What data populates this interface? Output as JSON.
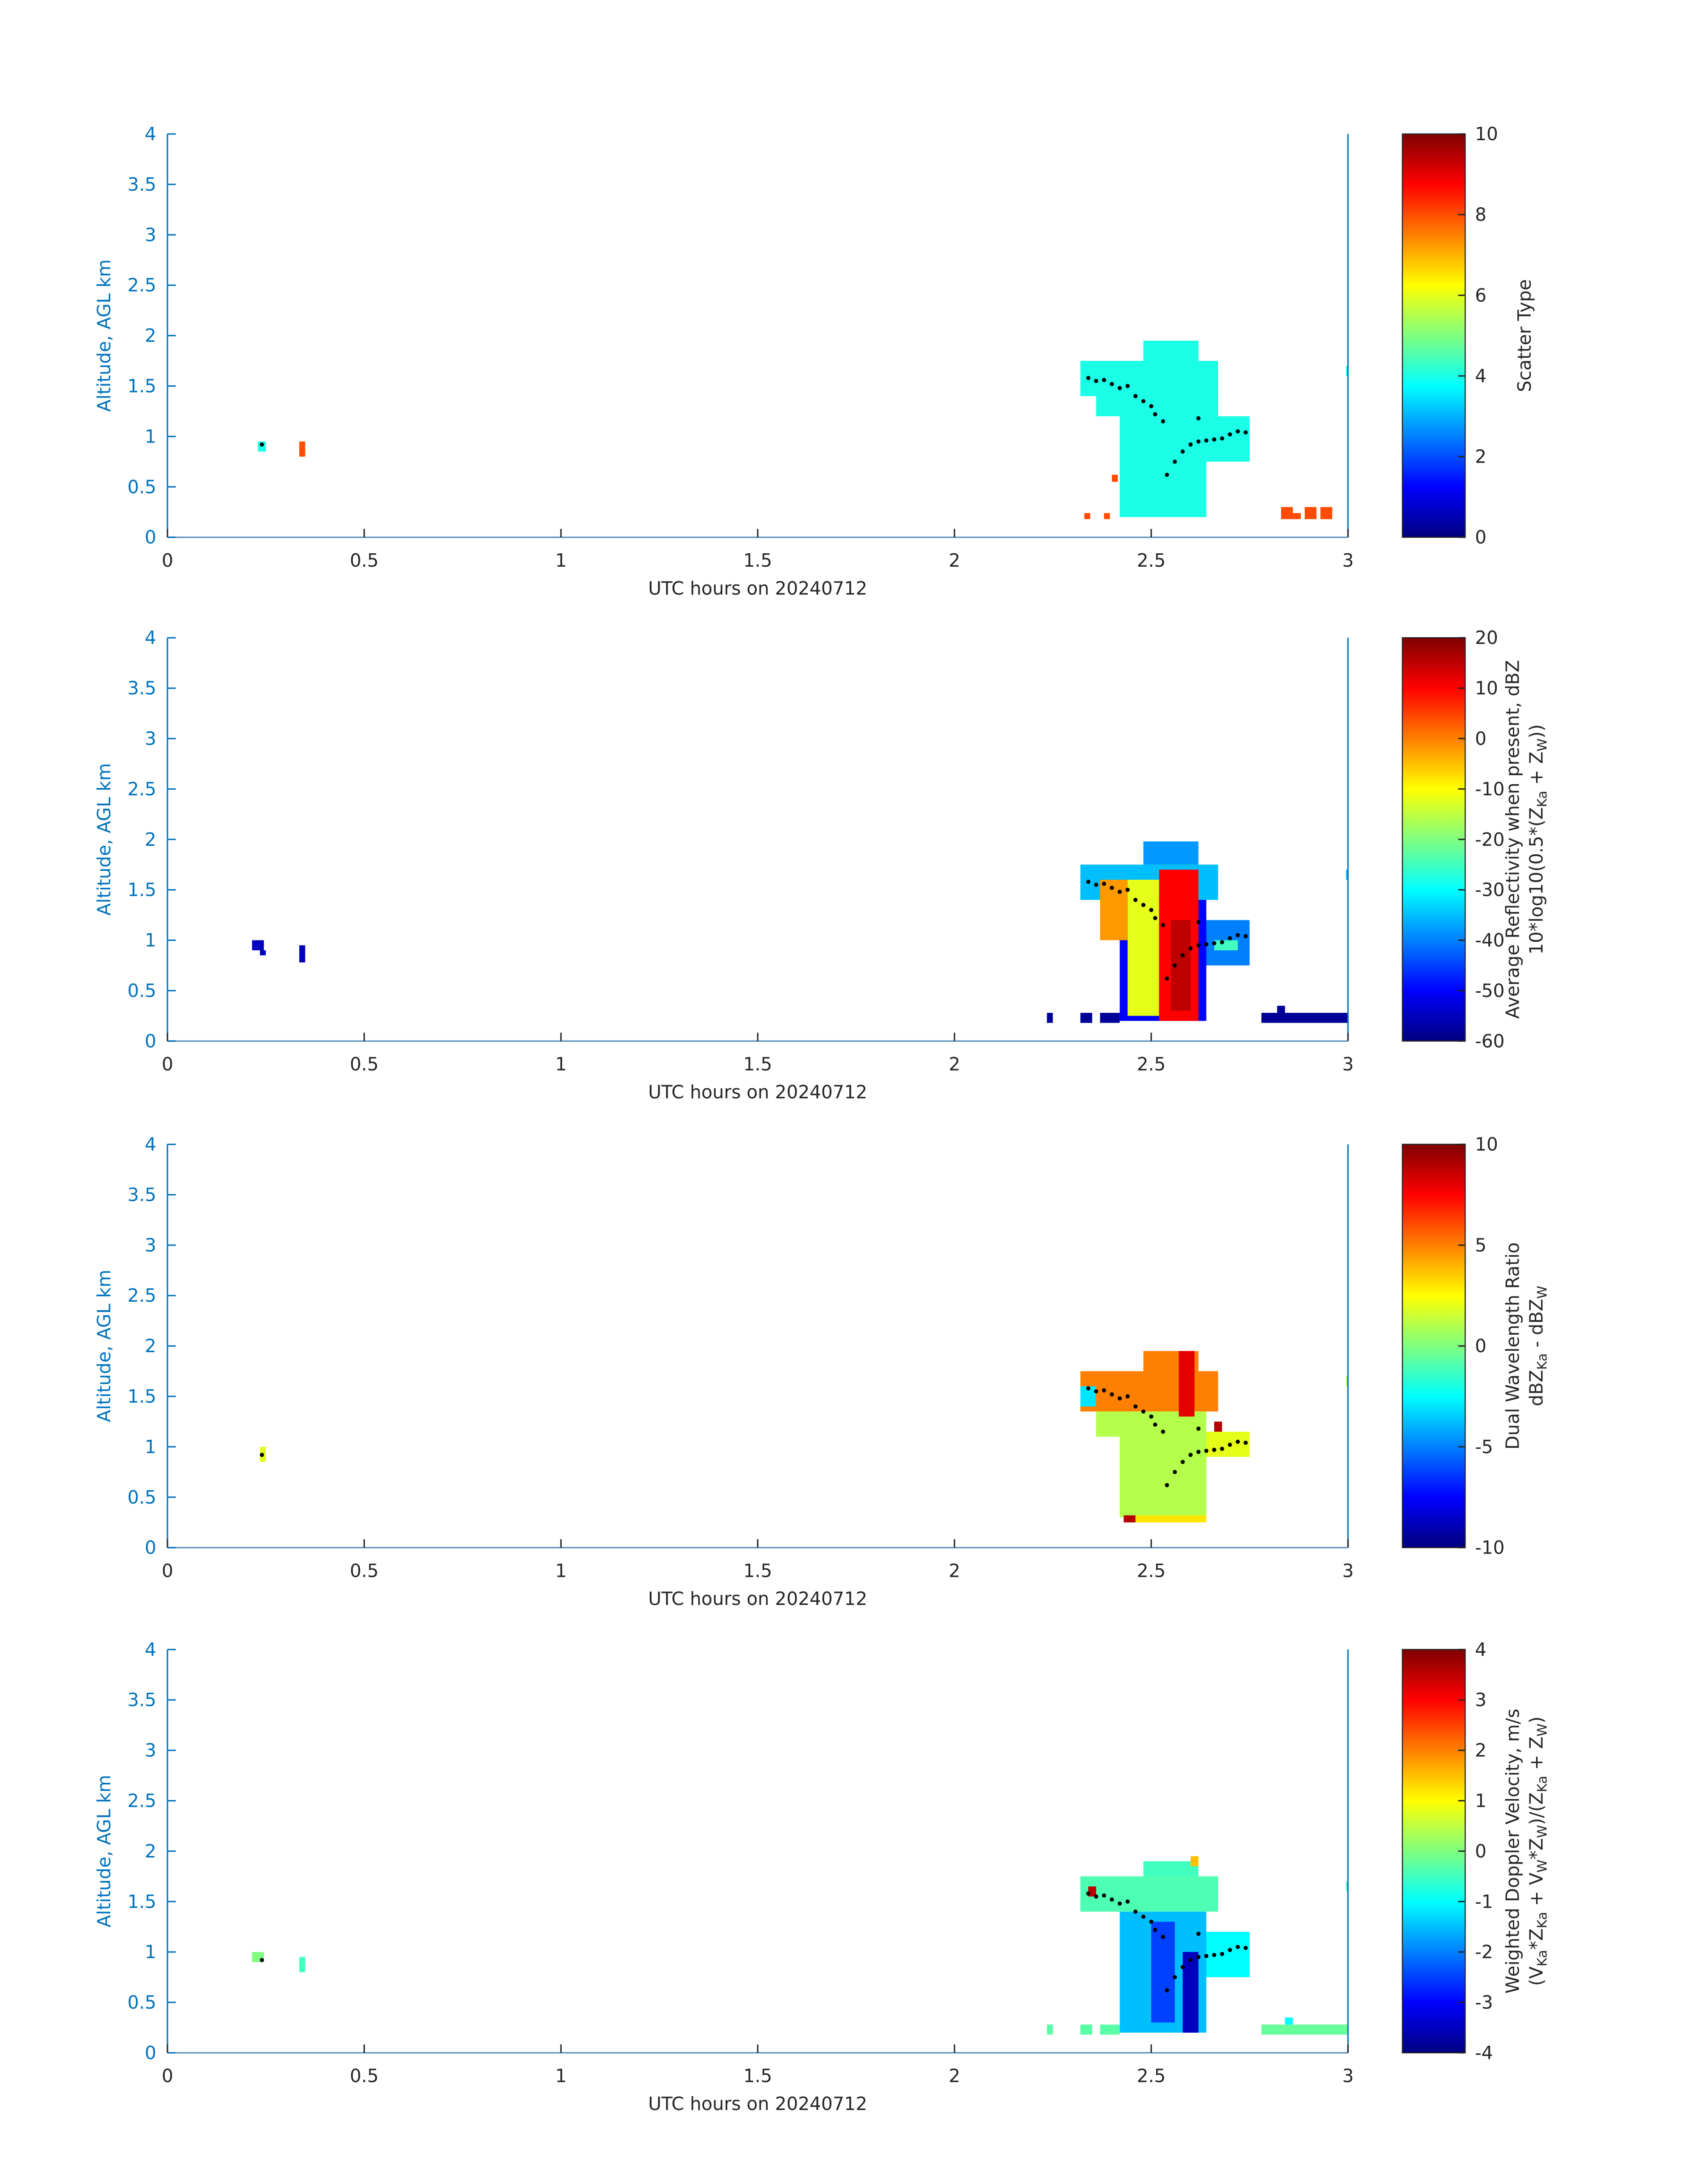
{
  "chart_data": [
    {
      "type": "heatmap",
      "xlabel": "UTC hours on 20240712",
      "ylabel": "Altitude, AGL km",
      "xlim": [
        0,
        3
      ],
      "ylim": [
        0,
        4
      ],
      "xticks": [
        0,
        0.5,
        1,
        1.5,
        2,
        2.5,
        3
      ],
      "yticks": [
        0,
        0.5,
        1,
        1.5,
        2,
        2.5,
        3,
        3.5,
        4
      ],
      "colormap": "jet",
      "clim": [
        0,
        10
      ],
      "cticks": [
        0,
        2,
        4,
        6,
        8,
        10
      ],
      "colorbar_label": [
        [
          {
            "text": "Scatter Type"
          }
        ]
      ],
      "patches": [
        {
          "x": [
            0.23,
            0.25
          ],
          "y": [
            0.85,
            0.95
          ],
          "value": 4
        },
        {
          "x": [
            0.335,
            0.35
          ],
          "y": [
            0.8,
            0.95
          ],
          "value": 8
        },
        {
          "x": [
            2.32,
            2.67
          ],
          "y": [
            1.4,
            1.75
          ],
          "value": 4
        },
        {
          "x": [
            2.36,
            2.42
          ],
          "y": [
            1.2,
            1.4
          ],
          "value": 4
        },
        {
          "x": [
            2.42,
            2.64
          ],
          "y": [
            0.2,
            1.4
          ],
          "value": 4
        },
        {
          "x": [
            2.48,
            2.62
          ],
          "y": [
            1.75,
            1.95
          ],
          "value": 4
        },
        {
          "x": [
            2.64,
            2.75
          ],
          "y": [
            0.75,
            1.2
          ],
          "value": 4
        },
        {
          "x": [
            2.64,
            2.67
          ],
          "y": [
            1.2,
            1.4
          ],
          "value": 4
        },
        {
          "x": [
            2.33,
            2.345
          ],
          "y": [
            0.18,
            0.24
          ],
          "value": 8
        },
        {
          "x": [
            2.38,
            2.395
          ],
          "y": [
            0.18,
            0.24
          ],
          "value": 8
        },
        {
          "x": [
            2.4,
            2.415
          ],
          "y": [
            0.55,
            0.62
          ],
          "value": 8
        },
        {
          "x": [
            2.83,
            2.86
          ],
          "y": [
            0.18,
            0.3
          ],
          "value": 8
        },
        {
          "x": [
            2.86,
            2.88
          ],
          "y": [
            0.18,
            0.24
          ],
          "value": 8
        },
        {
          "x": [
            2.89,
            2.92
          ],
          "y": [
            0.18,
            0.3
          ],
          "value": 8
        },
        {
          "x": [
            2.93,
            2.96
          ],
          "y": [
            0.18,
            0.3
          ],
          "value": 8
        },
        {
          "x": [
            2.995,
            3.0
          ],
          "y": [
            1.6,
            1.7
          ],
          "value": 4
        }
      ],
      "points": {
        "x": [
          0.24,
          2.34,
          2.36,
          2.38,
          2.4,
          2.42,
          2.44,
          2.46,
          2.48,
          2.5,
          2.51,
          2.53,
          2.54,
          2.56,
          2.58,
          2.6,
          2.62,
          2.62,
          2.64,
          2.66,
          2.68,
          2.7,
          2.72,
          2.74
        ],
        "y": [
          0.92,
          1.58,
          1.55,
          1.56,
          1.52,
          1.48,
          1.5,
          1.4,
          1.35,
          1.3,
          1.22,
          1.15,
          0.62,
          0.75,
          0.85,
          0.92,
          0.95,
          1.18,
          0.96,
          0.97,
          0.98,
          1.02,
          1.05,
          1.04
        ]
      }
    },
    {
      "type": "heatmap",
      "xlabel": "UTC hours on 20240712",
      "ylabel": "Altitude, AGL km",
      "xlim": [
        0,
        3
      ],
      "ylim": [
        0,
        4
      ],
      "xticks": [
        0,
        0.5,
        1,
        1.5,
        2,
        2.5,
        3
      ],
      "yticks": [
        0,
        0.5,
        1,
        1.5,
        2,
        2.5,
        3,
        3.5,
        4
      ],
      "colormap": "jet",
      "clim": [
        -60,
        20
      ],
      "cticks": [
        -60,
        -50,
        -40,
        -30,
        -20,
        -10,
        0,
        10,
        20
      ],
      "colorbar_label": [
        [
          {
            "text": "Average Reflectivity when present, dBZ"
          }
        ],
        [
          {
            "text": "10*log10(0.5*(Z"
          },
          {
            "text": "Ka",
            "sub": true
          },
          {
            "text": " + Z"
          },
          {
            "text": "W",
            "sub": true
          },
          {
            "text": "))"
          }
        ]
      ],
      "patches": [
        {
          "x": [
            0.215,
            0.245
          ],
          "y": [
            0.9,
            1.0
          ],
          "value": -55
        },
        {
          "x": [
            0.235,
            0.25
          ],
          "y": [
            0.85,
            0.9
          ],
          "value": -55
        },
        {
          "x": [
            0.335,
            0.35
          ],
          "y": [
            0.78,
            0.95
          ],
          "value": -55
        },
        {
          "x": [
            2.235,
            2.25
          ],
          "y": [
            0.18,
            0.28
          ],
          "value": -58
        },
        {
          "x": [
            2.32,
            2.35
          ],
          "y": [
            0.18,
            0.28
          ],
          "value": -58
        },
        {
          "x": [
            2.37,
            2.42
          ],
          "y": [
            0.18,
            0.28
          ],
          "value": -58
        },
        {
          "x": [
            2.78,
            3.0
          ],
          "y": [
            0.18,
            0.28
          ],
          "value": -58
        },
        {
          "x": [
            2.82,
            2.84
          ],
          "y": [
            0.28,
            0.35
          ],
          "value": -58
        },
        {
          "x": [
            2.32,
            2.67
          ],
          "y": [
            1.4,
            1.75
          ],
          "value": -35
        },
        {
          "x": [
            2.48,
            2.62
          ],
          "y": [
            1.75,
            1.98
          ],
          "value": -38
        },
        {
          "x": [
            2.42,
            2.64
          ],
          "y": [
            0.2,
            1.4
          ],
          "value": -50
        },
        {
          "x": [
            2.44,
            2.52
          ],
          "y": [
            0.25,
            1.6
          ],
          "value": -12
        },
        {
          "x": [
            2.37,
            2.44
          ],
          "y": [
            1.0,
            1.6
          ],
          "value": -2
        },
        {
          "x": [
            2.52,
            2.62
          ],
          "y": [
            0.2,
            1.7
          ],
          "value": 10
        },
        {
          "x": [
            2.55,
            2.6
          ],
          "y": [
            0.3,
            1.2
          ],
          "value": 15
        },
        {
          "x": [
            2.64,
            2.75
          ],
          "y": [
            0.75,
            1.2
          ],
          "value": -40
        },
        {
          "x": [
            2.66,
            2.72
          ],
          "y": [
            0.9,
            1.0
          ],
          "value": -25
        },
        {
          "x": [
            2.995,
            3.0
          ],
          "y": [
            1.6,
            1.7
          ],
          "value": -35
        }
      ],
      "points": {
        "x": [
          2.34,
          2.36,
          2.38,
          2.4,
          2.42,
          2.44,
          2.46,
          2.48,
          2.5,
          2.51,
          2.53,
          2.54,
          2.56,
          2.58,
          2.6,
          2.62,
          2.62,
          2.64,
          2.66,
          2.68,
          2.7,
          2.72,
          2.74
        ],
        "y": [
          1.58,
          1.55,
          1.56,
          1.52,
          1.48,
          1.5,
          1.4,
          1.35,
          1.3,
          1.22,
          1.15,
          0.62,
          0.75,
          0.85,
          0.92,
          0.95,
          1.18,
          0.96,
          0.97,
          0.98,
          1.02,
          1.05,
          1.04
        ]
      }
    },
    {
      "type": "heatmap",
      "xlabel": "UTC hours on 20240712",
      "ylabel": "Altitude, AGL km",
      "xlim": [
        0,
        3
      ],
      "ylim": [
        0,
        4
      ],
      "xticks": [
        0,
        0.5,
        1,
        1.5,
        2,
        2.5,
        3
      ],
      "yticks": [
        0,
        0.5,
        1,
        1.5,
        2,
        2.5,
        3,
        3.5,
        4
      ],
      "colormap": "jet",
      "clim": [
        -10,
        10
      ],
      "cticks": [
        -10,
        -5,
        0,
        5,
        10
      ],
      "colorbar_label": [
        [
          {
            "text": "Dual Wavelength Ratio"
          }
        ],
        [
          {
            "text": "dBZ"
          },
          {
            "text": "Ka",
            "sub": true
          },
          {
            "text": " - dBZ"
          },
          {
            "text": "W",
            "sub": true
          }
        ]
      ],
      "patches": [
        {
          "x": [
            0.235,
            0.25
          ],
          "y": [
            0.85,
            1.0
          ],
          "value": 2
        },
        {
          "x": [
            2.32,
            2.67
          ],
          "y": [
            1.35,
            1.75
          ],
          "value": 5
        },
        {
          "x": [
            2.32,
            2.36
          ],
          "y": [
            1.4,
            1.6
          ],
          "value": -3
        },
        {
          "x": [
            2.36,
            2.42
          ],
          "y": [
            1.1,
            1.35
          ],
          "value": 1
        },
        {
          "x": [
            2.42,
            2.64
          ],
          "y": [
            0.3,
            1.35
          ],
          "value": 1
        },
        {
          "x": [
            2.48,
            2.62
          ],
          "y": [
            1.75,
            1.95
          ],
          "value": 5
        },
        {
          "x": [
            2.57,
            2.61
          ],
          "y": [
            1.3,
            1.95
          ],
          "value": 8
        },
        {
          "x": [
            2.43,
            2.46
          ],
          "y": [
            0.25,
            0.32
          ],
          "value": 9
        },
        {
          "x": [
            2.46,
            2.64
          ],
          "y": [
            0.25,
            0.32
          ],
          "value": 3
        },
        {
          "x": [
            2.64,
            2.75
          ],
          "y": [
            0.9,
            1.15
          ],
          "value": 2
        },
        {
          "x": [
            2.66,
            2.68
          ],
          "y": [
            1.15,
            1.25
          ],
          "value": 9
        },
        {
          "x": [
            2.995,
            3.0
          ],
          "y": [
            1.6,
            1.7
          ],
          "value": 1
        }
      ],
      "points": {
        "x": [
          0.24,
          2.34,
          2.36,
          2.38,
          2.4,
          2.42,
          2.44,
          2.46,
          2.48,
          2.5,
          2.51,
          2.53,
          2.54,
          2.56,
          2.58,
          2.6,
          2.62,
          2.62,
          2.64,
          2.66,
          2.68,
          2.7,
          2.72,
          2.74
        ],
        "y": [
          0.92,
          1.58,
          1.55,
          1.56,
          1.52,
          1.48,
          1.5,
          1.4,
          1.35,
          1.3,
          1.22,
          1.15,
          0.62,
          0.75,
          0.85,
          0.92,
          0.95,
          1.18,
          0.96,
          0.97,
          0.98,
          1.02,
          1.05,
          1.04
        ]
      }
    },
    {
      "type": "heatmap",
      "xlabel": "UTC hours on 20240712",
      "ylabel": "Altitude, AGL km",
      "xlim": [
        0,
        3
      ],
      "ylim": [
        0,
        4
      ],
      "xticks": [
        0,
        0.5,
        1,
        1.5,
        2,
        2.5,
        3
      ],
      "yticks": [
        0,
        0.5,
        1,
        1.5,
        2,
        2.5,
        3,
        3.5,
        4
      ],
      "colormap": "jet",
      "clim": [
        -4,
        4
      ],
      "cticks": [
        -4,
        -3,
        -2,
        -1,
        0,
        1,
        2,
        3,
        4
      ],
      "colorbar_label": [
        [
          {
            "text": "Weighted Doppler Velocity, m/s"
          }
        ],
        [
          {
            "text": "(V"
          },
          {
            "text": "Ka",
            "sub": true
          },
          {
            "text": "*Z"
          },
          {
            "text": "Ka",
            "sub": true
          },
          {
            "text": " + V"
          },
          {
            "text": "W",
            "sub": true
          },
          {
            "text": "*Z"
          },
          {
            "text": "W",
            "sub": true
          },
          {
            "text": ")/(Z"
          },
          {
            "text": "Ka",
            "sub": true
          },
          {
            "text": " + Z"
          },
          {
            "text": "W",
            "sub": true
          },
          {
            "text": ")"
          }
        ]
      ],
      "patches": [
        {
          "x": [
            0.215,
            0.245
          ],
          "y": [
            0.9,
            1.0
          ],
          "value": 0
        },
        {
          "x": [
            0.335,
            0.35
          ],
          "y": [
            0.8,
            0.95
          ],
          "value": -0.5
        },
        {
          "x": [
            2.235,
            2.25
          ],
          "y": [
            0.18,
            0.28
          ],
          "value": -0.3
        },
        {
          "x": [
            2.32,
            2.35
          ],
          "y": [
            0.18,
            0.28
          ],
          "value": -0.3
        },
        {
          "x": [
            2.37,
            2.42
          ],
          "y": [
            0.18,
            0.28
          ],
          "value": -0.3
        },
        {
          "x": [
            2.78,
            3.0
          ],
          "y": [
            0.18,
            0.28
          ],
          "value": -0.2
        },
        {
          "x": [
            2.84,
            2.86
          ],
          "y": [
            0.28,
            0.35
          ],
          "value": -1
        },
        {
          "x": [
            2.32,
            2.67
          ],
          "y": [
            1.4,
            1.75
          ],
          "value": -0.4
        },
        {
          "x": [
            2.48,
            2.62
          ],
          "y": [
            1.75,
            1.9
          ],
          "value": -0.5
        },
        {
          "x": [
            2.42,
            2.64
          ],
          "y": [
            0.2,
            1.4
          ],
          "value": -1.5
        },
        {
          "x": [
            2.5,
            2.56
          ],
          "y": [
            0.3,
            1.3
          ],
          "value": -2.5
        },
        {
          "x": [
            2.58,
            2.62
          ],
          "y": [
            0.2,
            1.0
          ],
          "value": -3.5
        },
        {
          "x": [
            2.64,
            2.75
          ],
          "y": [
            0.75,
            1.2
          ],
          "value": -1
        },
        {
          "x": [
            2.34,
            2.36
          ],
          "y": [
            1.55,
            1.65
          ],
          "value": 3.5
        },
        {
          "x": [
            2.6,
            2.62
          ],
          "y": [
            1.85,
            1.95
          ],
          "value": 1.5
        },
        {
          "x": [
            2.995,
            3.0
          ],
          "y": [
            1.6,
            1.7
          ],
          "value": -0.4
        }
      ],
      "points": {
        "x": [
          0.24,
          2.34,
          2.36,
          2.38,
          2.4,
          2.42,
          2.44,
          2.46,
          2.48,
          2.5,
          2.51,
          2.53,
          2.54,
          2.56,
          2.58,
          2.6,
          2.62,
          2.62,
          2.64,
          2.66,
          2.68,
          2.7,
          2.72,
          2.74
        ],
        "y": [
          0.92,
          1.58,
          1.55,
          1.56,
          1.52,
          1.48,
          1.5,
          1.4,
          1.35,
          1.3,
          1.22,
          1.15,
          0.62,
          0.75,
          0.85,
          0.92,
          0.95,
          1.18,
          0.96,
          0.97,
          0.98,
          1.02,
          1.05,
          1.04
        ]
      }
    }
  ]
}
